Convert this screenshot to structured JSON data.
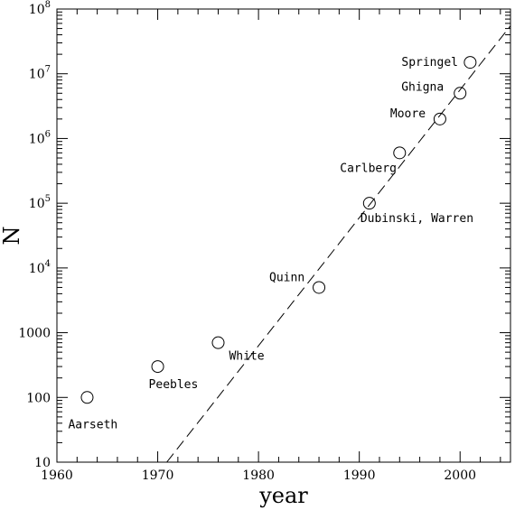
{
  "chart_data": {
    "type": "scatter",
    "title": "",
    "xlabel": "year",
    "ylabel": "N",
    "xlim": [
      1960,
      2005
    ],
    "ylim": [
      10,
      100000000
    ],
    "y_scale": "log",
    "grid": false,
    "x_ticks": [
      1960,
      1970,
      1980,
      1990,
      2000
    ],
    "x_tick_labels": [
      "1960",
      "1970",
      "1980",
      "1990",
      "2000"
    ],
    "y_ticks": [
      10,
      100,
      1000,
      10000,
      100000,
      1000000,
      10000000,
      100000000
    ],
    "y_tick_labels": [
      {
        "base": "10",
        "exp": ""
      },
      {
        "base": "100",
        "exp": ""
      },
      {
        "base": "1000",
        "exp": ""
      },
      {
        "base": "10",
        "exp": "4"
      },
      {
        "base": "10",
        "exp": "5"
      },
      {
        "base": "10",
        "exp": "6"
      },
      {
        "base": "10",
        "exp": "7"
      },
      {
        "base": "10",
        "exp": "8"
      }
    ],
    "points": [
      {
        "label": "Aarseth",
        "x": 1963,
        "y": 100
      },
      {
        "label": "Peebles",
        "x": 1970,
        "y": 300
      },
      {
        "label": "White",
        "x": 1976,
        "y": 700
      },
      {
        "label": "Quinn",
        "x": 1986,
        "y": 5000
      },
      {
        "label": "Dubinski, Warren",
        "x": 1991,
        "y": 100000
      },
      {
        "label": "Carlberg",
        "x": 1994,
        "y": 600000
      },
      {
        "label": "Moore",
        "x": 1998,
        "y": 2000000
      },
      {
        "label": "Ghigna",
        "x": 2000,
        "y": 5000000
      },
      {
        "label": "Springel",
        "x": 2001,
        "y": 15000000
      }
    ],
    "trend_line": {
      "style": "dashed",
      "points": [
        [
          1970.9,
          10
        ],
        [
          2005,
          55000000
        ]
      ]
    },
    "marker": "open-circle"
  }
}
